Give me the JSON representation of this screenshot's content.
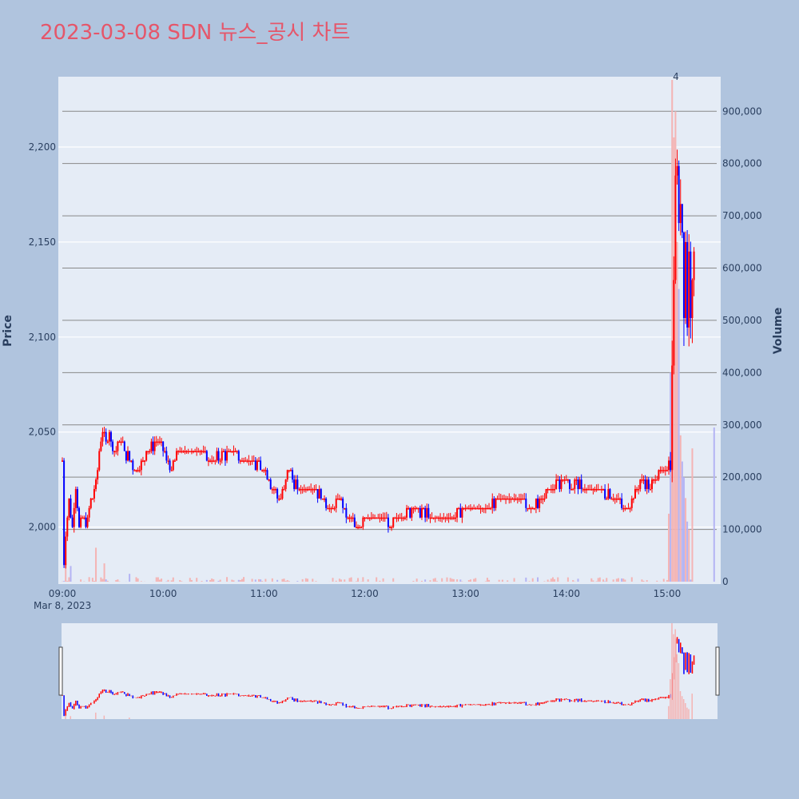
{
  "chart_data": {
    "type": "candlestick",
    "title": "2023-03-08 SDN 뉴스_공시 차트",
    "ylabel_left": "Price",
    "ylabel_right": "Volume",
    "date_label": "Mar 8, 2023",
    "price_ticks": [
      "2,000",
      "2,050",
      "2,100",
      "2,150",
      "2,200"
    ],
    "price_tick_values": [
      2000,
      2050,
      2100,
      2150,
      2200
    ],
    "volume_ticks": [
      "0",
      "100,000",
      "200,000",
      "300,000",
      "400,000",
      "500,000",
      "600,000",
      "700,000",
      "800,000",
      "900,000"
    ],
    "volume_tick_values": [
      0,
      100000,
      200000,
      300000,
      400000,
      500000,
      600000,
      700000,
      800000,
      900000
    ],
    "time_ticks": [
      "09:00",
      "10:00",
      "11:00",
      "12:00",
      "13:00",
      "14:00",
      "15:00"
    ],
    "annotation": "4",
    "ylim_price": [
      1970,
      2237
    ],
    "ylim_volume": [
      0,
      960000
    ],
    "x_range": [
      "09:00",
      "15:30"
    ],
    "up_color": "#ff0000",
    "down_color": "#0000ff",
    "volume_up_color": "#f4b4b4",
    "volume_down_color": "#b4b4f4",
    "plot_bg": "#e5ecf6",
    "price_path": [
      [
        "09:00",
        2035
      ],
      [
        "09:01",
        1980
      ],
      [
        "09:02",
        1995
      ],
      [
        "09:04",
        2015
      ],
      [
        "09:06",
        2000
      ],
      [
        "09:08",
        2020
      ],
      [
        "09:10",
        2000
      ],
      [
        "09:12",
        2005
      ],
      [
        "09:14",
        2000
      ],
      [
        "09:16",
        2010
      ],
      [
        "09:18",
        2015
      ],
      [
        "09:20",
        2025
      ],
      [
        "09:22",
        2040
      ],
      [
        "09:24",
        2050
      ],
      [
        "09:26",
        2045
      ],
      [
        "09:28",
        2050
      ],
      [
        "09:30",
        2040
      ],
      [
        "09:35",
        2045
      ],
      [
        "09:40",
        2035
      ],
      [
        "09:45",
        2030
      ],
      [
        "09:50",
        2040
      ],
      [
        "09:55",
        2045
      ],
      [
        "10:00",
        2040
      ],
      [
        "10:05",
        2030
      ],
      [
        "10:10",
        2040
      ],
      [
        "10:20",
        2040
      ],
      [
        "10:30",
        2035
      ],
      [
        "10:40",
        2040
      ],
      [
        "10:50",
        2035
      ],
      [
        "11:00",
        2030
      ],
      [
        "11:05",
        2020
      ],
      [
        "11:10",
        2015
      ],
      [
        "11:15",
        2030
      ],
      [
        "11:20",
        2020
      ],
      [
        "11:30",
        2020
      ],
      [
        "11:40",
        2010
      ],
      [
        "11:45",
        2015
      ],
      [
        "11:50",
        2005
      ],
      [
        "11:55",
        2000
      ],
      [
        "12:00",
        2005
      ],
      [
        "12:10",
        2005
      ],
      [
        "12:15",
        2000
      ],
      [
        "12:20",
        2005
      ],
      [
        "12:30",
        2010
      ],
      [
        "12:40",
        2005
      ],
      [
        "12:50",
        2005
      ],
      [
        "13:00",
        2010
      ],
      [
        "13:10",
        2010
      ],
      [
        "13:20",
        2015
      ],
      [
        "13:30",
        2015
      ],
      [
        "13:40",
        2010
      ],
      [
        "13:50",
        2020
      ],
      [
        "14:00",
        2025
      ],
      [
        "14:10",
        2020
      ],
      [
        "14:20",
        2020
      ],
      [
        "14:30",
        2015
      ],
      [
        "14:35",
        2010
      ],
      [
        "14:40",
        2015
      ],
      [
        "14:45",
        2025
      ],
      [
        "14:50",
        2020
      ],
      [
        "14:55",
        2030
      ],
      [
        "15:00",
        2030
      ],
      [
        "15:02",
        2040
      ],
      [
        "15:03",
        2080
      ],
      [
        "15:04",
        2140
      ],
      [
        "15:05",
        2180
      ],
      [
        "15:06",
        2195
      ],
      [
        "15:07",
        2150
      ],
      [
        "15:08",
        2180
      ],
      [
        "15:09",
        2160
      ],
      [
        "15:10",
        2120
      ],
      [
        "15:11",
        2150
      ],
      [
        "15:12",
        2110
      ],
      [
        "15:13",
        2140
      ],
      [
        "15:14",
        2120
      ],
      [
        "15:15",
        2140
      ],
      [
        "15:16",
        2135
      ]
    ],
    "volume_spikes": [
      [
        "09:02",
        35000
      ],
      [
        "09:05",
        30000
      ],
      [
        "09:20",
        65000
      ],
      [
        "09:25",
        35000
      ],
      [
        "09:40",
        15000
      ],
      [
        "15:01",
        130000
      ],
      [
        "15:02",
        400000
      ],
      [
        "15:03",
        960000
      ],
      [
        "15:04",
        850000
      ],
      [
        "15:05",
        900000
      ],
      [
        "15:06",
        650000
      ],
      [
        "15:07",
        560000
      ],
      [
        "15:08",
        280000
      ],
      [
        "15:09",
        230000
      ],
      [
        "15:10",
        200000
      ],
      [
        "15:11",
        160000
      ],
      [
        "15:12",
        115000
      ],
      [
        "15:13",
        100000
      ],
      [
        "15:15",
        255000
      ],
      [
        "15:28",
        295000
      ]
    ]
  }
}
